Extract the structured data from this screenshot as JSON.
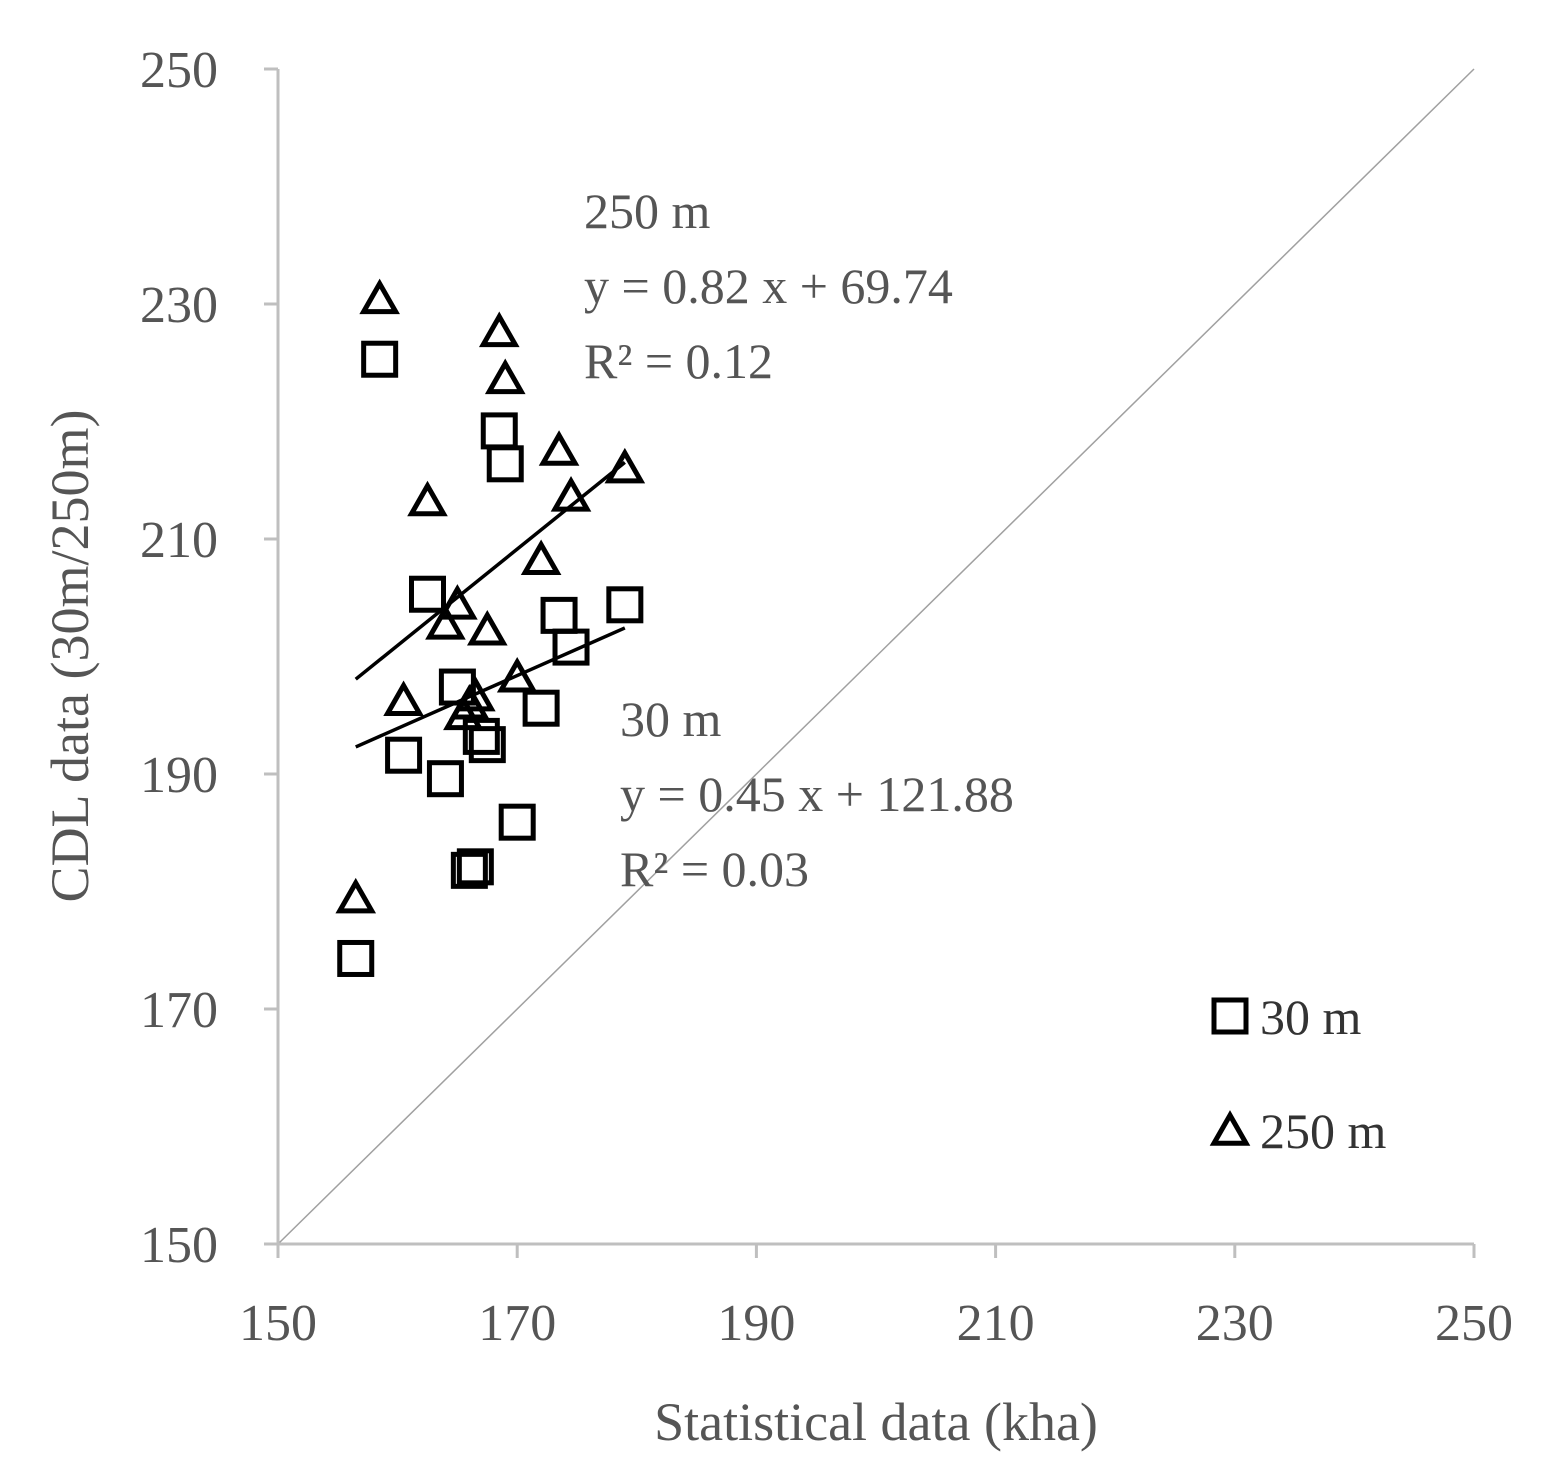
{
  "chart_data": {
    "type": "scatter",
    "title": "",
    "xlabel": "Statistical data (kha)",
    "ylabel": "CDL data (30m/250m)",
    "xlim": [
      150,
      250
    ],
    "ylim": [
      150,
      250
    ],
    "xticks": [
      150,
      170,
      190,
      210,
      230,
      250
    ],
    "yticks": [
      150,
      170,
      190,
      210,
      230,
      250
    ],
    "grid": false,
    "legend_position": "bottom-right",
    "axis_color": "#bfbfbf",
    "marker_color": "#000000",
    "series": [
      {
        "name": "30 m",
        "marker": "square",
        "points": [
          [
            156.5,
            174.3
          ],
          [
            158.5,
            225.3
          ],
          [
            160.5,
            191.6
          ],
          [
            162.5,
            205.3
          ],
          [
            164,
            189.6
          ],
          [
            165,
            197.4
          ],
          [
            166,
            181.8
          ],
          [
            166.5,
            182.1
          ],
          [
            167,
            193.2
          ],
          [
            167.5,
            192.5
          ],
          [
            168.5,
            219.2
          ],
          [
            169,
            216.4
          ],
          [
            170,
            185.9
          ],
          [
            172,
            195.6
          ],
          [
            173.5,
            203.5
          ],
          [
            174.5,
            200.8
          ],
          [
            179,
            204.4
          ]
        ]
      },
      {
        "name": "250 m",
        "marker": "triangle",
        "points": [
          [
            156.5,
            179.3
          ],
          [
            158.5,
            230.3
          ],
          [
            160.5,
            196.1
          ],
          [
            162.5,
            213.1
          ],
          [
            164,
            202.6
          ],
          [
            165,
            204.3
          ],
          [
            165.5,
            194.9
          ],
          [
            166,
            195.8
          ],
          [
            166.5,
            196.5
          ],
          [
            167.5,
            202.1
          ],
          [
            168.5,
            227.5
          ],
          [
            169,
            223.5
          ],
          [
            170,
            198.1
          ],
          [
            172,
            208.1
          ],
          [
            173.5,
            217.4
          ],
          [
            174.5,
            213.5
          ],
          [
            179,
            215.9
          ]
        ]
      }
    ],
    "trendlines": [
      {
        "series": "250 m",
        "slope": 0.82,
        "intercept": 69.74,
        "x_range": [
          156.5,
          179
        ]
      },
      {
        "series": "30 m",
        "slope": 0.45,
        "intercept": 121.88,
        "x_range": [
          156.5,
          179
        ]
      }
    ],
    "reference_line": {
      "from": [
        150,
        150
      ],
      "to": [
        250,
        250
      ]
    },
    "annotations": [
      {
        "id": "250",
        "lines": [
          "250 m",
          "y = 0.82 x + 69.74",
          "R² = 0.12"
        ]
      },
      {
        "id": "30",
        "lines": [
          "30 m",
          "y = 0.45 x + 121.88",
          "R² = 0.03"
        ]
      }
    ]
  }
}
